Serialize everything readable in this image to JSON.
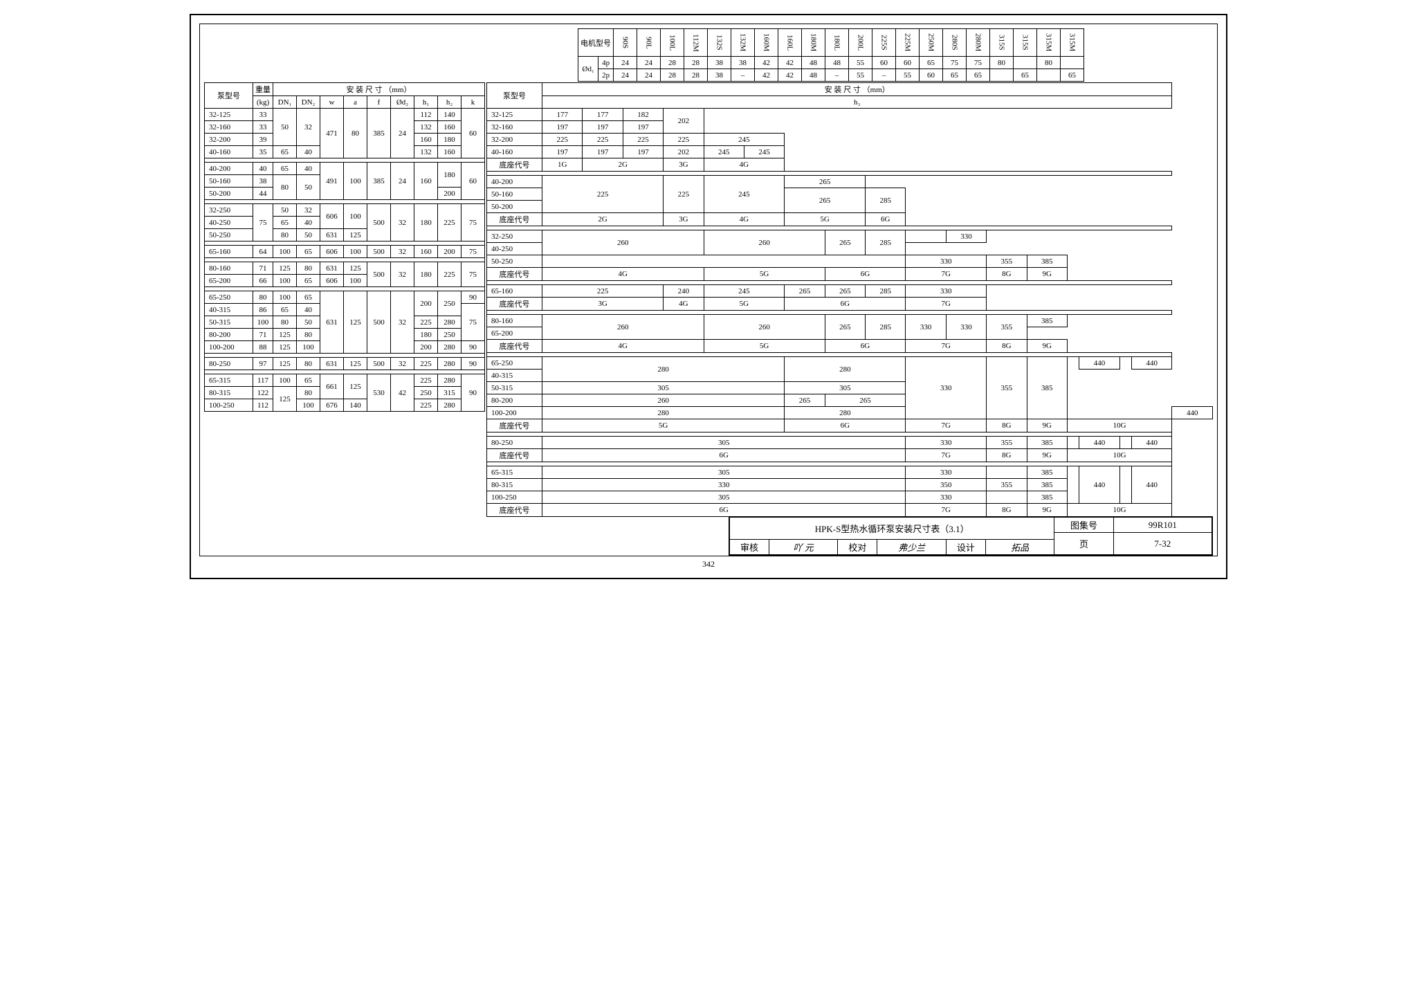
{
  "motor_header": {
    "label": "电机型号",
    "d1": "Ød₁",
    "p4": "4p",
    "p2": "2p",
    "models": [
      "90S",
      "90L",
      "100L",
      "112M",
      "132S",
      "132M",
      "160M",
      "160L",
      "180M",
      "180L",
      "200L",
      "225S",
      "225M",
      "250M",
      "280S",
      "280M",
      "315S",
      "315S",
      "315M",
      "315M"
    ],
    "p4_vals": [
      "24",
      "24",
      "28",
      "28",
      "38",
      "38",
      "42",
      "42",
      "48",
      "48",
      "55",
      "60",
      "60",
      "65",
      "75",
      "75",
      "80",
      "",
      "80",
      ""
    ],
    "p2_vals": [
      "24",
      "24",
      "28",
      "28",
      "38",
      "–",
      "42",
      "42",
      "48",
      "–",
      "55",
      "–",
      "55",
      "60",
      "65",
      "65",
      "",
      "65",
      "",
      "65"
    ]
  },
  "left": {
    "h_pump": "泵型号",
    "h_weight": "重量",
    "h_kg": "(kg)",
    "h_install": "安 装 尺 寸 （mm）",
    "cols": [
      "DN₁",
      "DN₂",
      "w",
      "a",
      "f",
      "Ød₂",
      "h₁",
      "h₂",
      "k"
    ],
    "groups": [
      {
        "rows": [
          {
            "m": "32-125",
            "kg": "33",
            "dn1": "50",
            "dn2": "32",
            "w": "471",
            "a": "80",
            "f": "385",
            "d2": "24",
            "h1": "112",
            "h2": "140",
            "k": "60",
            "sp": {
              "dn1": 3,
              "dn2": 3,
              "w": 4,
              "a": 4,
              "f": 4,
              "d2": 4,
              "k": 4
            }
          },
          {
            "m": "32-160",
            "kg": "33",
            "h1": "132",
            "h2": "160"
          },
          {
            "m": "32-200",
            "kg": "39",
            "h1": "160",
            "h2": "180"
          },
          {
            "m": "40-160",
            "kg": "35",
            "dn1": "65",
            "dn2": "40",
            "h1": "132",
            "h2": "160"
          }
        ]
      },
      {
        "rows": [
          {
            "m": "40-200",
            "kg": "40",
            "dn1": "65",
            "dn2": "40",
            "w": "491",
            "a": "100",
            "f": "385",
            "d2": "24",
            "h1": "160",
            "h2": "180",
            "k": "60",
            "sp": {
              "w": 3,
              "a": 3,
              "f": 3,
              "d2": 3,
              "h1": 3,
              "k": 3,
              "h2": 2
            }
          },
          {
            "m": "50-160",
            "kg": "38",
            "dn1": "80",
            "dn2": "50",
            "sp": {
              "dn1": 2,
              "dn2": 2
            }
          },
          {
            "m": "50-200",
            "kg": "44",
            "h2": "200"
          }
        ]
      },
      {
        "rows": [
          {
            "m": "32-250",
            "kg": "75",
            "dn1": "50",
            "dn2": "32",
            "w": "606",
            "a": "100",
            "f": "500",
            "d2": "32",
            "h1": "180",
            "h2": "225",
            "k": "75",
            "sp": {
              "kg": 3,
              "w": 2,
              "a": 2,
              "f": 3,
              "d2": 3,
              "h1": 3,
              "h2": 3,
              "k": 3
            }
          },
          {
            "m": "40-250",
            "dn1": "65",
            "dn2": "40"
          },
          {
            "m": "50-250",
            "dn1": "80",
            "dn2": "50",
            "w": "631",
            "a": "125"
          }
        ]
      },
      {
        "rows": [
          {
            "m": "65-160",
            "kg": "64",
            "dn1": "100",
            "dn2": "65",
            "w": "606",
            "a": "100",
            "f": "500",
            "d2": "32",
            "h1": "160",
            "h2": "200",
            "k": "75"
          }
        ]
      },
      {
        "rows": [
          {
            "m": "80-160",
            "kg": "71",
            "dn1": "125",
            "dn2": "80",
            "w": "631",
            "a": "125",
            "f": "500",
            "d2": "32",
            "h1": "180",
            "h2": "225",
            "k": "75",
            "sp": {
              "f": 2,
              "d2": 2,
              "h1": 2,
              "h2": 2,
              "k": 2
            }
          },
          {
            "m": "65-200",
            "kg": "66",
            "dn1": "100",
            "dn2": "65",
            "w": "606",
            "a": "100"
          }
        ]
      },
      {
        "rows": [
          {
            "m": "65-250",
            "kg": "80",
            "dn1": "100",
            "dn2": "65",
            "w": "631",
            "a": "125",
            "f": "500",
            "d2": "32",
            "h1": "200",
            "h2": "250",
            "k": "90",
            "sp": {
              "w": 5,
              "a": 5,
              "f": 5,
              "d2": 5,
              "h1": 2,
              "h2": 2
            }
          },
          {
            "m": "40-315",
            "kg": "86",
            "dn1": "65",
            "dn2": "40",
            "k": "75",
            "sp": {
              "k": 3
            }
          },
          {
            "m": "50-315",
            "kg": "100",
            "dn1": "80",
            "dn2": "50",
            "h1": "225",
            "h2": "280"
          },
          {
            "m": "80-200",
            "kg": "71",
            "dn1": "125",
            "dn2": "80",
            "h1": "180",
            "h2": "250"
          },
          {
            "m": "100-200",
            "kg": "88",
            "dn1": "125",
            "dn2": "100",
            "h1": "200",
            "h2": "280",
            "k": "90"
          }
        ]
      },
      {
        "rows": [
          {
            "m": "80-250",
            "kg": "97",
            "dn1": "125",
            "dn2": "80",
            "w": "631",
            "a": "125",
            "f": "500",
            "d2": "32",
            "h1": "225",
            "h2": "280",
            "k": "90"
          }
        ]
      },
      {
        "rows": [
          {
            "m": "65-315",
            "kg": "117",
            "dn1": "100",
            "dn2": "65",
            "w": "661",
            "a": "125",
            "f": "530",
            "d2": "42",
            "h1": "225",
            "h2": "280",
            "k": "90",
            "sp": {
              "w": 2,
              "a": 2,
              "f": 3,
              "d2": 3,
              "k": 3
            }
          },
          {
            "m": "80-315",
            "kg": "122",
            "dn1": "125",
            "dn2": "80",
            "h1": "250",
            "h2": "315",
            "sp": {
              "dn1": 2
            }
          },
          {
            "m": "100-250",
            "kg": "112",
            "dn2": "100",
            "w": "676",
            "a": "140",
            "h1": "225",
            "h2": "280"
          }
        ]
      }
    ]
  },
  "right": {
    "h_pump": "泵型号",
    "h_install": "安 装 尺 寸 （mm）",
    "h_h3": "h₃",
    "base_label": "底座代号"
  },
  "title": {
    "main": "HPK-S型热水循环泵安装尺寸表（3.1）",
    "atlas_lbl": "图集号",
    "atlas": "99R101",
    "review": "审核",
    "check": "校对",
    "design": "设计",
    "page_lbl": "页",
    "page": "7-32"
  },
  "footer_page": "342"
}
